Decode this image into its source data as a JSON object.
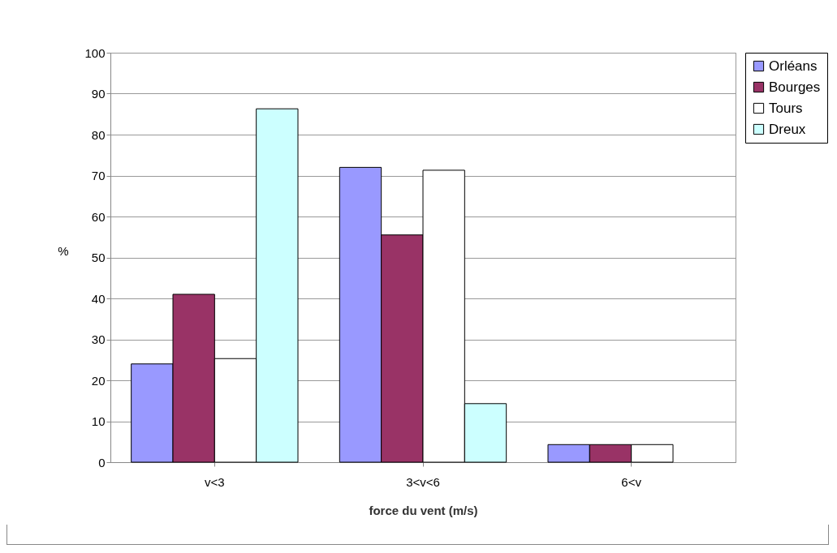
{
  "chart_data": {
    "type": "bar",
    "xlabel": "force du vent (m/s)",
    "ylabel": "%",
    "categories": [
      "v<3",
      "3<v<6",
      "6<v"
    ],
    "series": [
      {
        "name": "Orléans",
        "color": "#9999ff",
        "values": [
          24,
          72,
          4.3
        ]
      },
      {
        "name": "Bourges",
        "color": "#993366",
        "values": [
          41,
          55.5,
          4.3
        ]
      },
      {
        "name": "Tours",
        "color": "#ffffff",
        "values": [
          25.3,
          71.3,
          4.3
        ]
      },
      {
        "name": "Dreux",
        "color": "#ccffff",
        "values": [
          86.3,
          14.3,
          null
        ]
      }
    ],
    "ylim": [
      0,
      100
    ],
    "yticks": [
      0,
      10,
      20,
      30,
      40,
      50,
      60,
      70,
      80,
      90,
      100
    ],
    "grid": "y",
    "legend": "right"
  }
}
